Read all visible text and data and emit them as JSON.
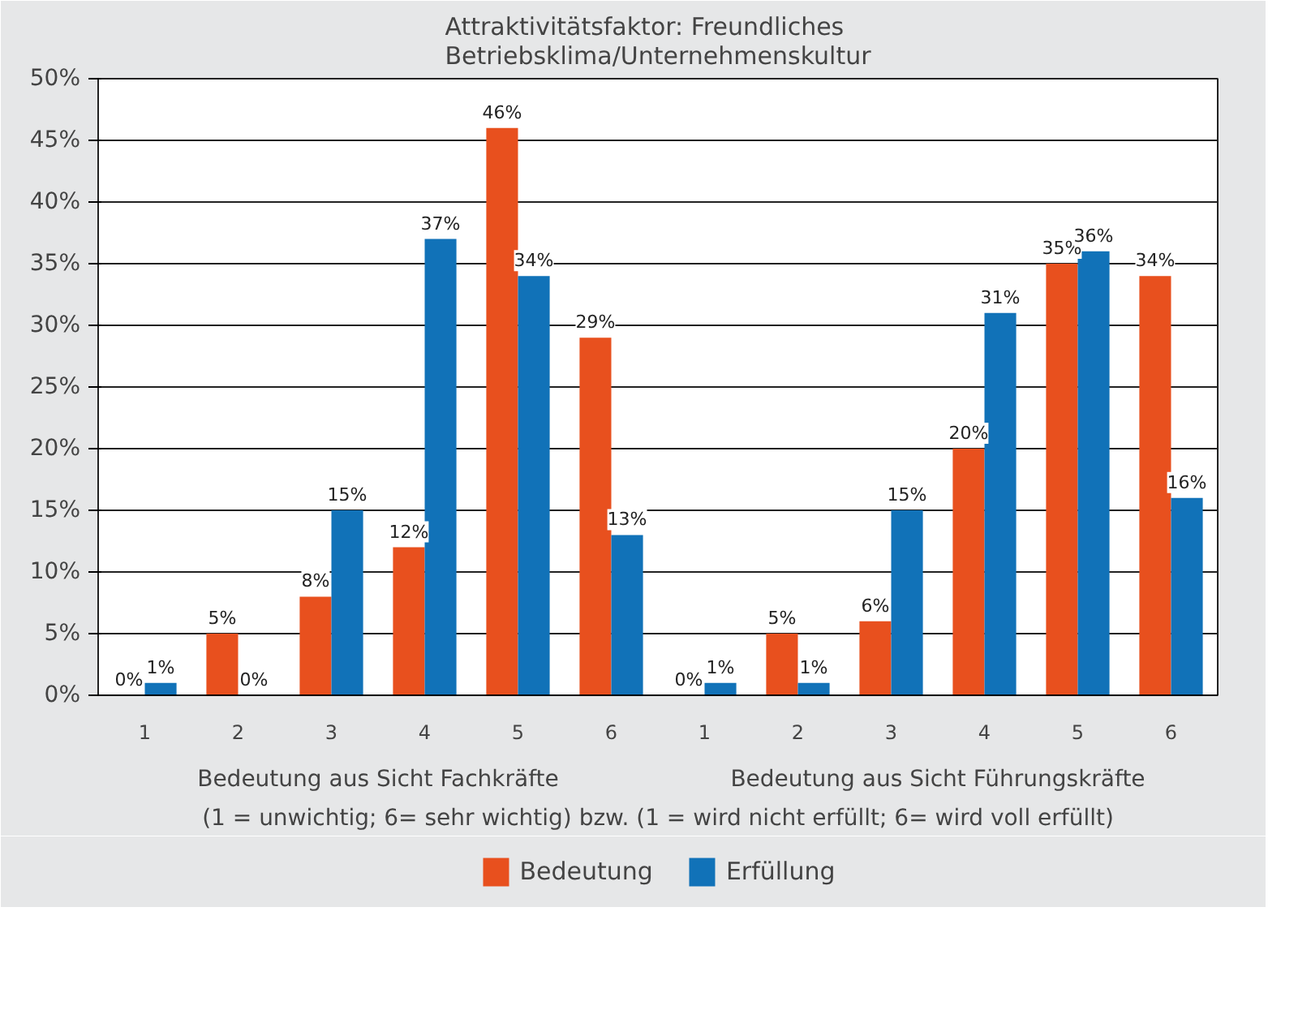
{
  "chart_data": {
    "type": "bar",
    "title": "Attraktivitätsfaktor: Freundliches\nBetriebsklima/Unternehmenskultur",
    "xlabel": "(1 = unwichtig; 6= sehr wichtig) bzw. (1 = wird nicht erfüllt; 6= wird voll erfüllt)",
    "categories": [
      "1",
      "2",
      "3",
      "4",
      "5",
      "6",
      "1",
      "2",
      "3",
      "4",
      "5",
      "6"
    ],
    "annotations": [
      "Bedeutung aus Sicht Fachkräfte",
      "Bedeutung aus Sicht Führungskräfte"
    ],
    "series": [
      {
        "name": "Bedeutung",
        "color": "#e8501e",
        "values": [
          0,
          5,
          8,
          12,
          46,
          29,
          0,
          5,
          6,
          20,
          35,
          34
        ],
        "value_labels": [
          "0%",
          "5%",
          "8%",
          "12%",
          "46%",
          "29%",
          "0%",
          "5%",
          "6%",
          "20%",
          "35%",
          "34%"
        ]
      },
      {
        "name": "Erfüllung",
        "color": "#1172b8",
        "values": [
          1,
          0,
          15,
          37,
          34,
          13,
          1,
          1,
          15,
          31,
          36,
          16
        ],
        "value_labels": [
          "1%",
          "0%",
          "15%",
          "37%",
          "34%",
          "13%",
          "1%",
          "1%",
          "15%",
          "31%",
          "36%",
          "16%"
        ]
      }
    ],
    "ylim": [
      0,
      50
    ],
    "yticks": [
      {
        "value": 0,
        "label": "0%"
      },
      {
        "value": 5,
        "label": "5%"
      },
      {
        "value": 10,
        "label": "10%"
      },
      {
        "value": 15,
        "label": "15%"
      },
      {
        "value": 20,
        "label": "20%"
      },
      {
        "value": 25,
        "label": "25%"
      },
      {
        "value": 30,
        "label": "30%"
      },
      {
        "value": 35,
        "label": "35%"
      },
      {
        "value": 40,
        "label": "40%"
      },
      {
        "value": 45,
        "label": "45%"
      },
      {
        "value": 50,
        "label": "50%"
      }
    ],
    "grid": "y",
    "legend": "bottom"
  }
}
